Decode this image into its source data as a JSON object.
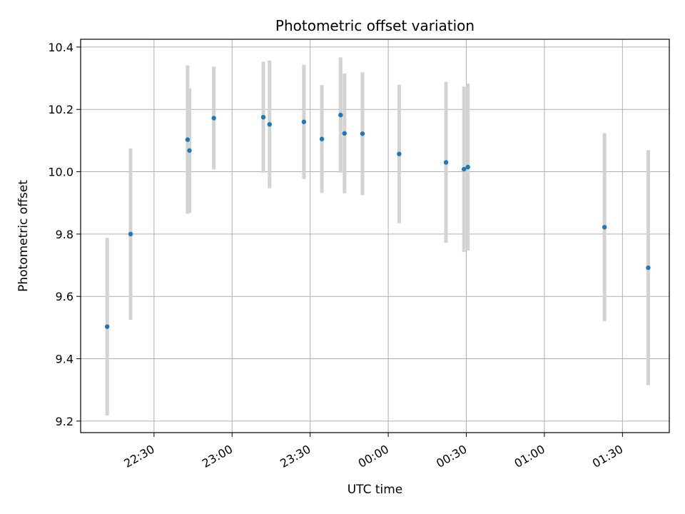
{
  "chart_data": {
    "type": "scatter",
    "title": "Photometric offset variation",
    "xlabel": "UTC time",
    "ylabel": "Photometric offset",
    "grid": true,
    "x_ticks": [
      "22:30",
      "23:00",
      "23:30",
      "00:00",
      "00:30",
      "01:00",
      "01:30"
    ],
    "x_tick_values": [
      22.5,
      23.0,
      23.5,
      24.0,
      24.5,
      25.0,
      25.5
    ],
    "y_ticks": [
      "9.2",
      "9.4",
      "9.6",
      "9.8",
      "10.0",
      "10.2",
      "10.4"
    ],
    "y_tick_values": [
      9.2,
      9.4,
      9.6,
      9.8,
      10.0,
      10.2,
      10.4
    ],
    "xlim": [
      22.03,
      25.8
    ],
    "ylim": [
      9.163,
      10.425
    ],
    "point_color": "#1f77b4",
    "errorbar_color": "#d3d3d3",
    "points": [
      {
        "t": 22.2,
        "y": 9.503,
        "err": 0.285
      },
      {
        "t": 22.35,
        "y": 9.8,
        "err": 0.275
      },
      {
        "t": 22.715,
        "y": 10.103,
        "err": 0.238
      },
      {
        "t": 22.727,
        "y": 10.068,
        "err": 0.2
      },
      {
        "t": 22.883,
        "y": 10.172,
        "err": 0.165
      },
      {
        "t": 23.2,
        "y": 10.175,
        "err": 0.178
      },
      {
        "t": 23.24,
        "y": 10.152,
        "err": 0.205
      },
      {
        "t": 23.46,
        "y": 10.16,
        "err": 0.183
      },
      {
        "t": 23.575,
        "y": 10.105,
        "err": 0.173
      },
      {
        "t": 23.695,
        "y": 10.182,
        "err": 0.185
      },
      {
        "t": 23.72,
        "y": 10.123,
        "err": 0.192
      },
      {
        "t": 23.835,
        "y": 10.122,
        "err": 0.197
      },
      {
        "t": 24.07,
        "y": 10.057,
        "err": 0.222
      },
      {
        "t": 24.37,
        "y": 10.03,
        "err": 0.258
      },
      {
        "t": 24.485,
        "y": 10.008,
        "err": 0.265
      },
      {
        "t": 24.51,
        "y": 10.015,
        "err": 0.268
      },
      {
        "t": 25.385,
        "y": 9.822,
        "err": 0.302
      },
      {
        "t": 25.665,
        "y": 9.692,
        "err": 0.377
      }
    ]
  }
}
